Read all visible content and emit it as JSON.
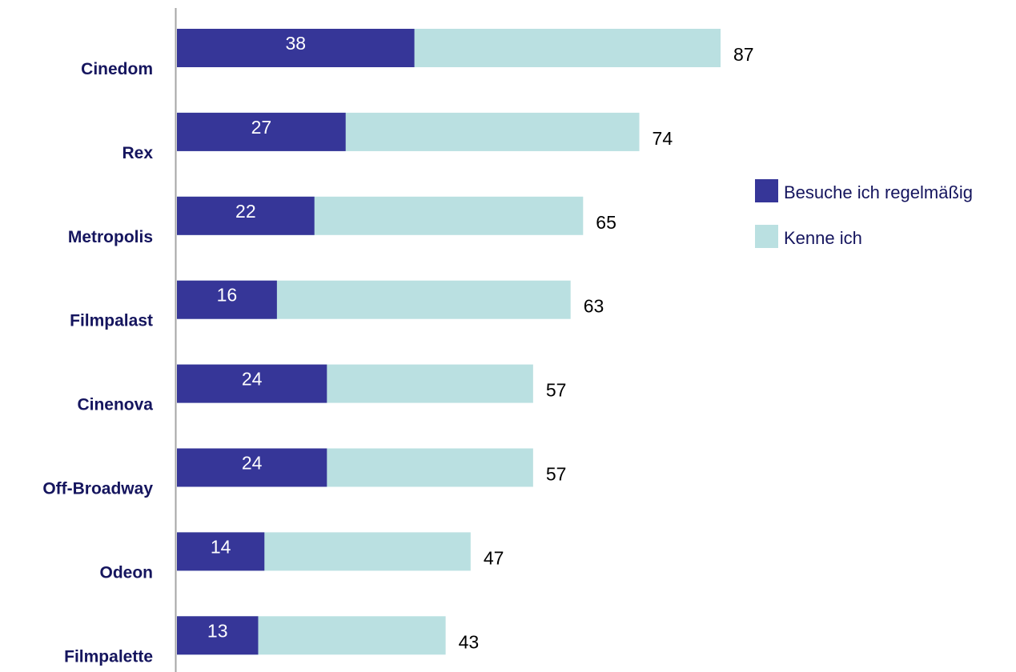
{
  "chart_data": {
    "type": "bar",
    "orientation": "horizontal",
    "categories": [
      "Cinedom",
      "Rex",
      "Metropolis",
      "Filmpalast",
      "Cinenova",
      "Off-Broadway",
      "Odeon",
      "Filmpalette"
    ],
    "series": [
      {
        "name": "Besuche ich regelmäßig",
        "values": [
          38,
          27,
          22,
          16,
          24,
          24,
          14,
          13
        ],
        "color": "#363698"
      },
      {
        "name": "Kenne ich",
        "values": [
          87,
          74,
          65,
          63,
          57,
          57,
          47,
          43
        ],
        "color": "#bae0e1"
      }
    ],
    "value_labels": {
      "inner": [
        "38",
        "27",
        "22",
        "16",
        "24",
        "24",
        "14",
        "13"
      ],
      "total": [
        "87",
        "74",
        "65",
        "63",
        "57",
        "57",
        "47",
        "43"
      ]
    },
    "category_label_color": "#15155e",
    "legend_text_color": "#15155e",
    "axis_color": "#a6a6a6",
    "xlim": [
      0,
      87
    ],
    "grid": false,
    "legend_position": "right"
  }
}
